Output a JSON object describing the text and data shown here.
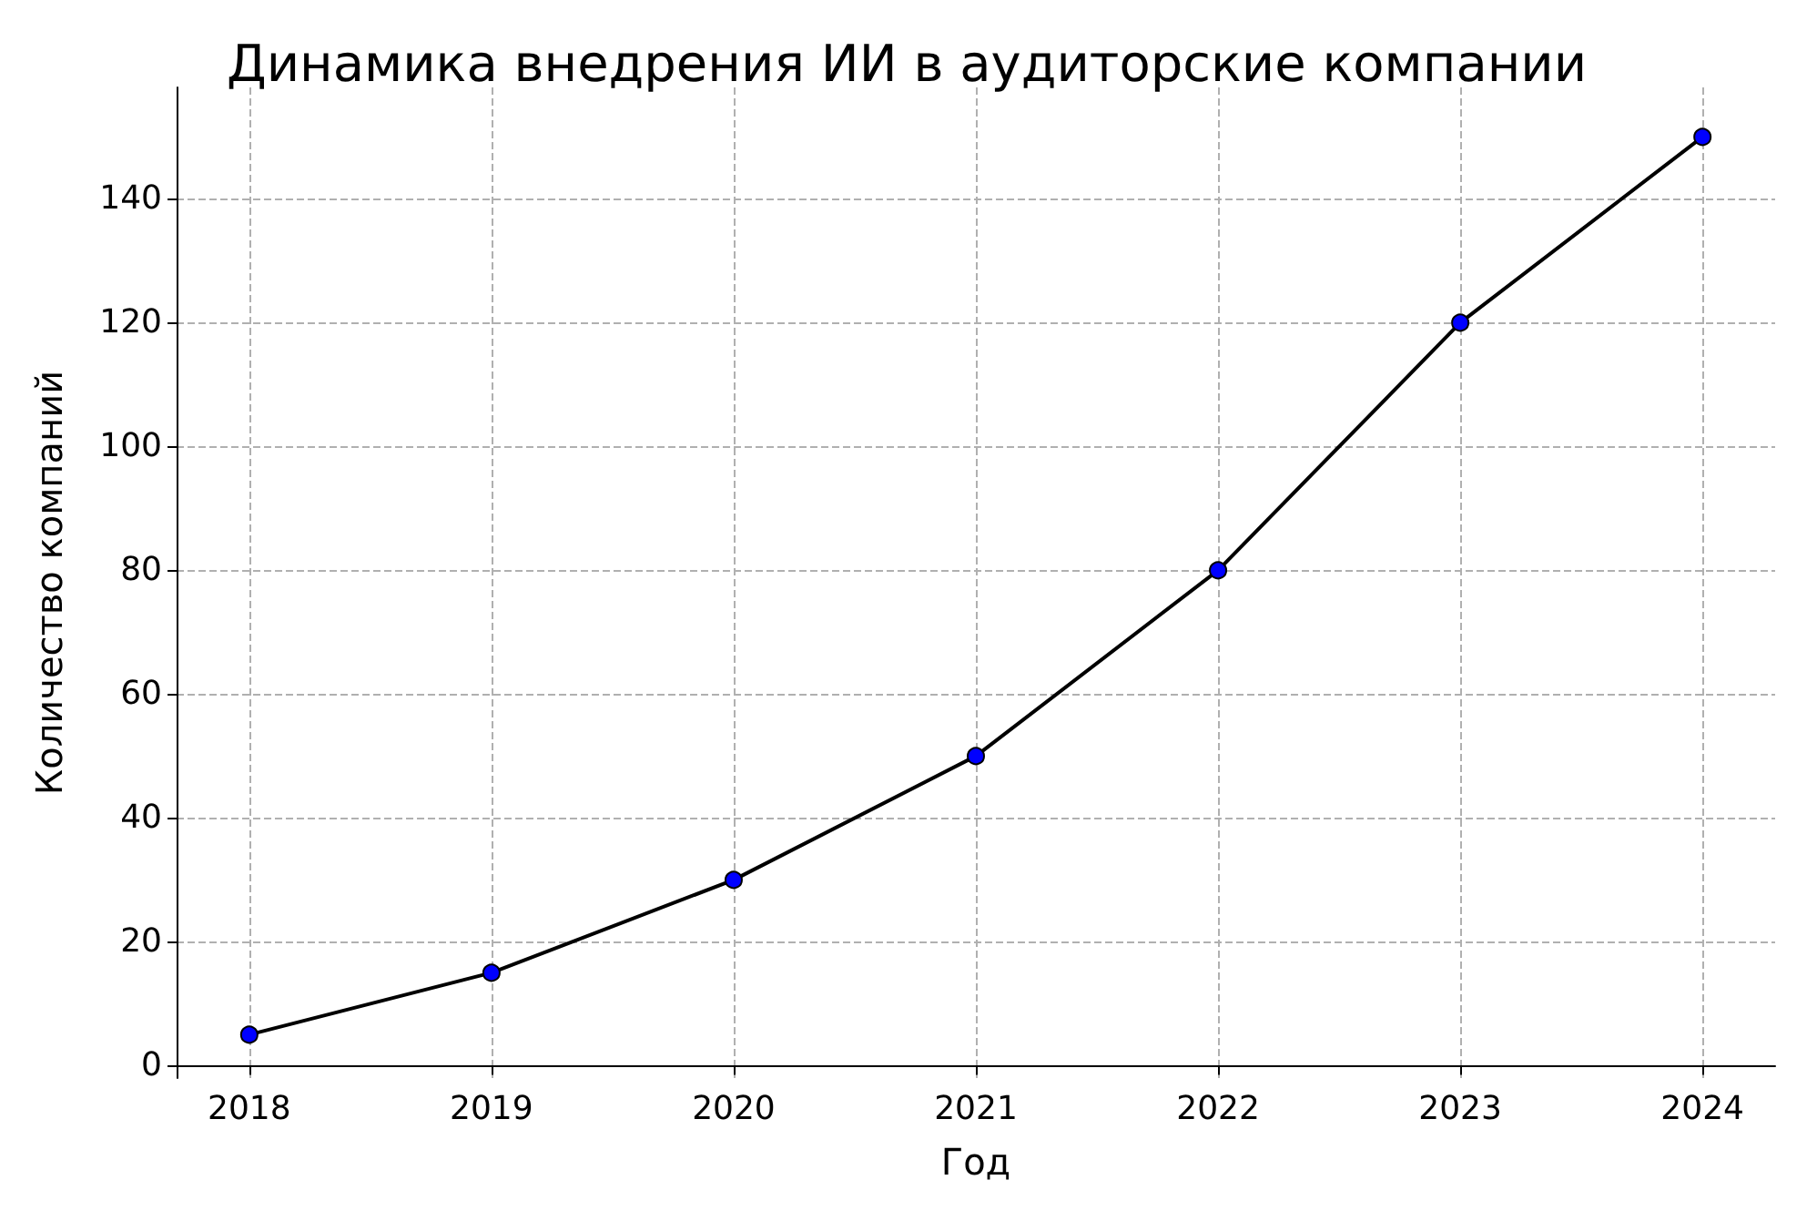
{
  "chart_data": {
    "type": "line",
    "title": "Динамика внедрения ИИ в аудиторские компании",
    "xlabel": "Год",
    "ylabel": "Количество компаний",
    "x": [
      2018,
      2019,
      2020,
      2021,
      2022,
      2023,
      2024
    ],
    "series": [
      {
        "color": "#0000ff",
        "values": [
          5,
          15,
          30,
          50,
          80,
          120,
          150
        ]
      }
    ],
    "xlim": [
      2017.7,
      2024.3
    ],
    "xticks": [
      2018,
      2019,
      2020,
      2021,
      2022,
      2023,
      2024
    ],
    "ylim": [
      -2,
      158
    ],
    "yticks": [
      0,
      20,
      40,
      60,
      80,
      100,
      120,
      140
    ],
    "grid": true,
    "marker": "circle",
    "line_style": "solid"
  }
}
